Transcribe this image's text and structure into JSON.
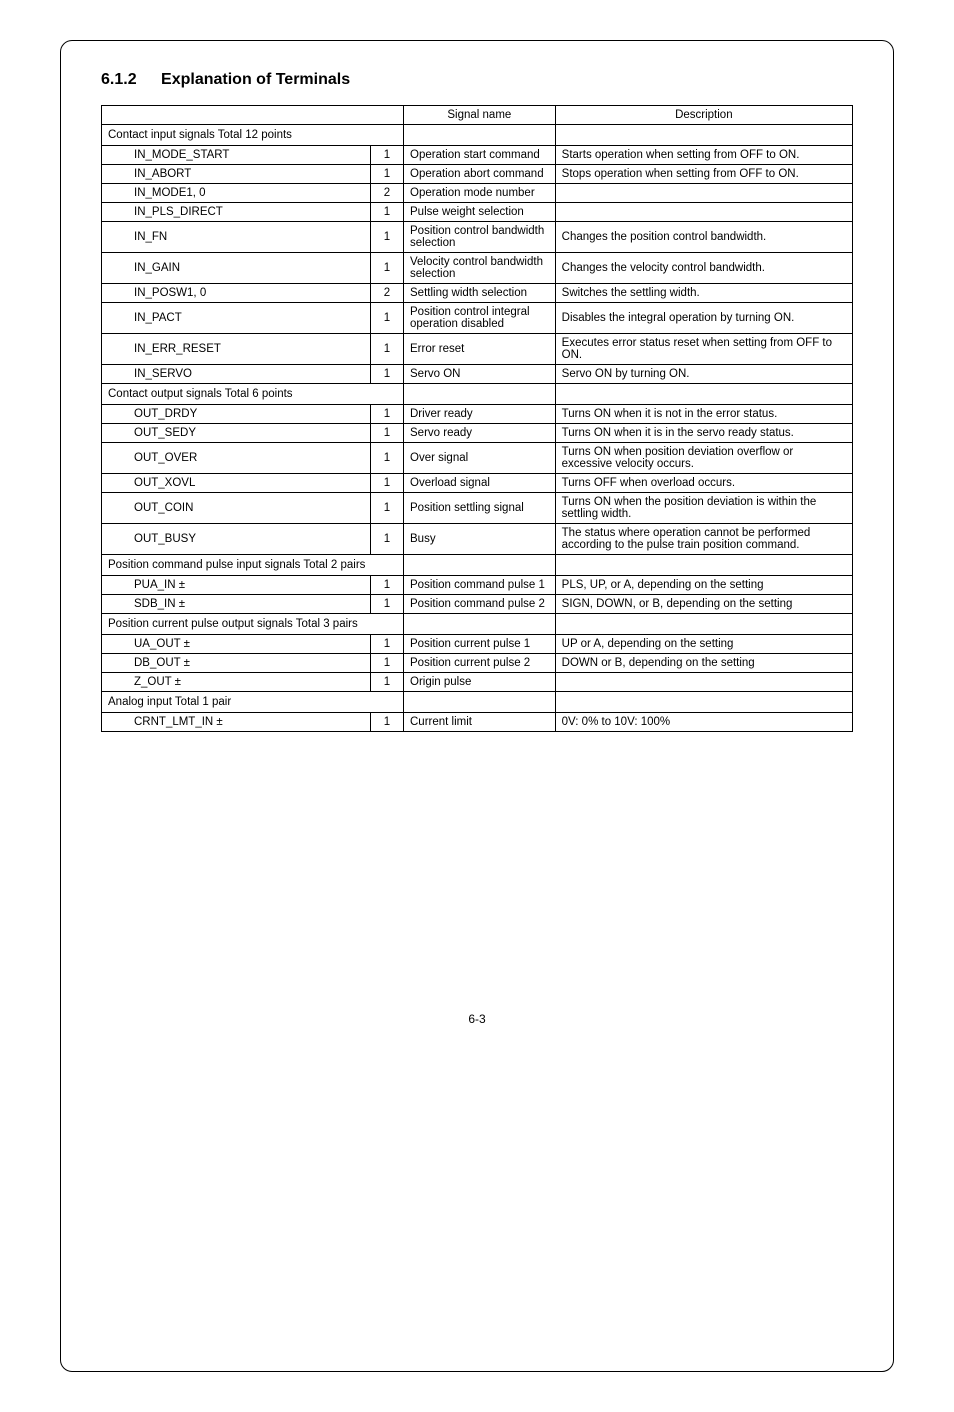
{
  "heading": {
    "number": "6.1.2",
    "title": "Explanation of Terminals"
  },
  "columns": {
    "signal": "Signal name",
    "description": "Description"
  },
  "section1": {
    "title": "Contact input signals   Total 12 points",
    "rows": [
      {
        "name": "IN_MODE_START",
        "count": "1",
        "signal": "Operation start command",
        "desc": "Starts operation when setting from OFF to ON."
      },
      {
        "name": "IN_ABORT",
        "count": "1",
        "signal": "Operation abort command",
        "desc": "Stops operation when setting from OFF to ON."
      },
      {
        "name": "IN_MODE1, 0",
        "count": "2",
        "signal": "Operation mode number",
        "desc": ""
      },
      {
        "name": "IN_PLS_DIRECT",
        "count": "1",
        "signal": "Pulse weight selection",
        "desc": ""
      },
      {
        "name": "IN_FN",
        "count": "1",
        "signal": "Position control bandwidth selection",
        "desc": "Changes the position control bandwidth."
      },
      {
        "name": "IN_GAIN",
        "count": "1",
        "signal": "Velocity control bandwidth selection",
        "desc": "Changes the velocity control bandwidth."
      },
      {
        "name": "IN_POSW1, 0",
        "count": "2",
        "signal": "Settling width selection",
        "desc": "Switches the settling width."
      },
      {
        "name": "IN_PACT",
        "count": "1",
        "signal": "Position control integral operation disabled",
        "desc": "Disables the integral operation by turning ON."
      },
      {
        "name": "IN_ERR_RESET",
        "count": "1",
        "signal": "Error reset",
        "desc": "Executes error status reset when setting from OFF to ON."
      },
      {
        "name": "IN_SERVO",
        "count": "1",
        "signal": "Servo ON",
        "desc": "Servo ON by turning ON."
      }
    ]
  },
  "section2": {
    "title": "Contact output signals   Total 6 points",
    "rows": [
      {
        "name": "OUT_DRDY",
        "count": "1",
        "signal": "Driver ready",
        "desc": "Turns ON when it is not in the error status."
      },
      {
        "name": "OUT_SEDY",
        "count": "1",
        "signal": "Servo ready",
        "desc": "Turns ON when it is in the servo ready status."
      },
      {
        "name": "OUT_OVER",
        "count": "1",
        "signal": "Over signal",
        "desc": "Turns ON when position deviation overflow or excessive velocity occurs."
      },
      {
        "name": "OUT_XOVL",
        "count": "1",
        "signal": "Overload signal",
        "desc": "Turns OFF when overload occurs."
      },
      {
        "name": "OUT_COIN",
        "count": "1",
        "signal": "Position settling signal",
        "desc": "Turns ON when the position deviation is within the settling width."
      },
      {
        "name": "OUT_BUSY",
        "count": "1",
        "signal": "Busy",
        "desc": "The status where operation cannot be performed according to the pulse train position command."
      }
    ]
  },
  "section3": {
    "title": "Position command pulse input signals Total 2 pairs",
    "rows": [
      {
        "name": "PUA_IN ±",
        "count": "1",
        "signal": "Position command pulse 1",
        "desc": "PLS, UP, or A, depending on the setting"
      },
      {
        "name": "SDB_IN ±",
        "count": "1",
        "signal": "Position command pulse 2",
        "desc": "SIGN, DOWN, or B, depending on the setting"
      }
    ]
  },
  "section4": {
    "title": "Position current pulse output signals Total 3 pairs",
    "rows": [
      {
        "name": "UA_OUT ±",
        "count": "1",
        "signal": "Position current pulse 1",
        "desc": "UP or A, depending on the setting"
      },
      {
        "name": "DB_OUT ±",
        "count": "1",
        "signal": "Position current pulse 2",
        "desc": "DOWN or B, depending on the setting"
      },
      {
        "name": "Z_OUT ±",
        "count": "1",
        "signal": "Origin pulse",
        "desc": ""
      }
    ]
  },
  "section5": {
    "title": "Analog input   Total 1 pair",
    "rows": [
      {
        "name": "CRNT_LMT_IN ±",
        "count": "1",
        "signal": "Current limit",
        "desc": "0V: 0% to 10V: 100%"
      }
    ]
  },
  "pageTab": "6",
  "footer": "6-3"
}
